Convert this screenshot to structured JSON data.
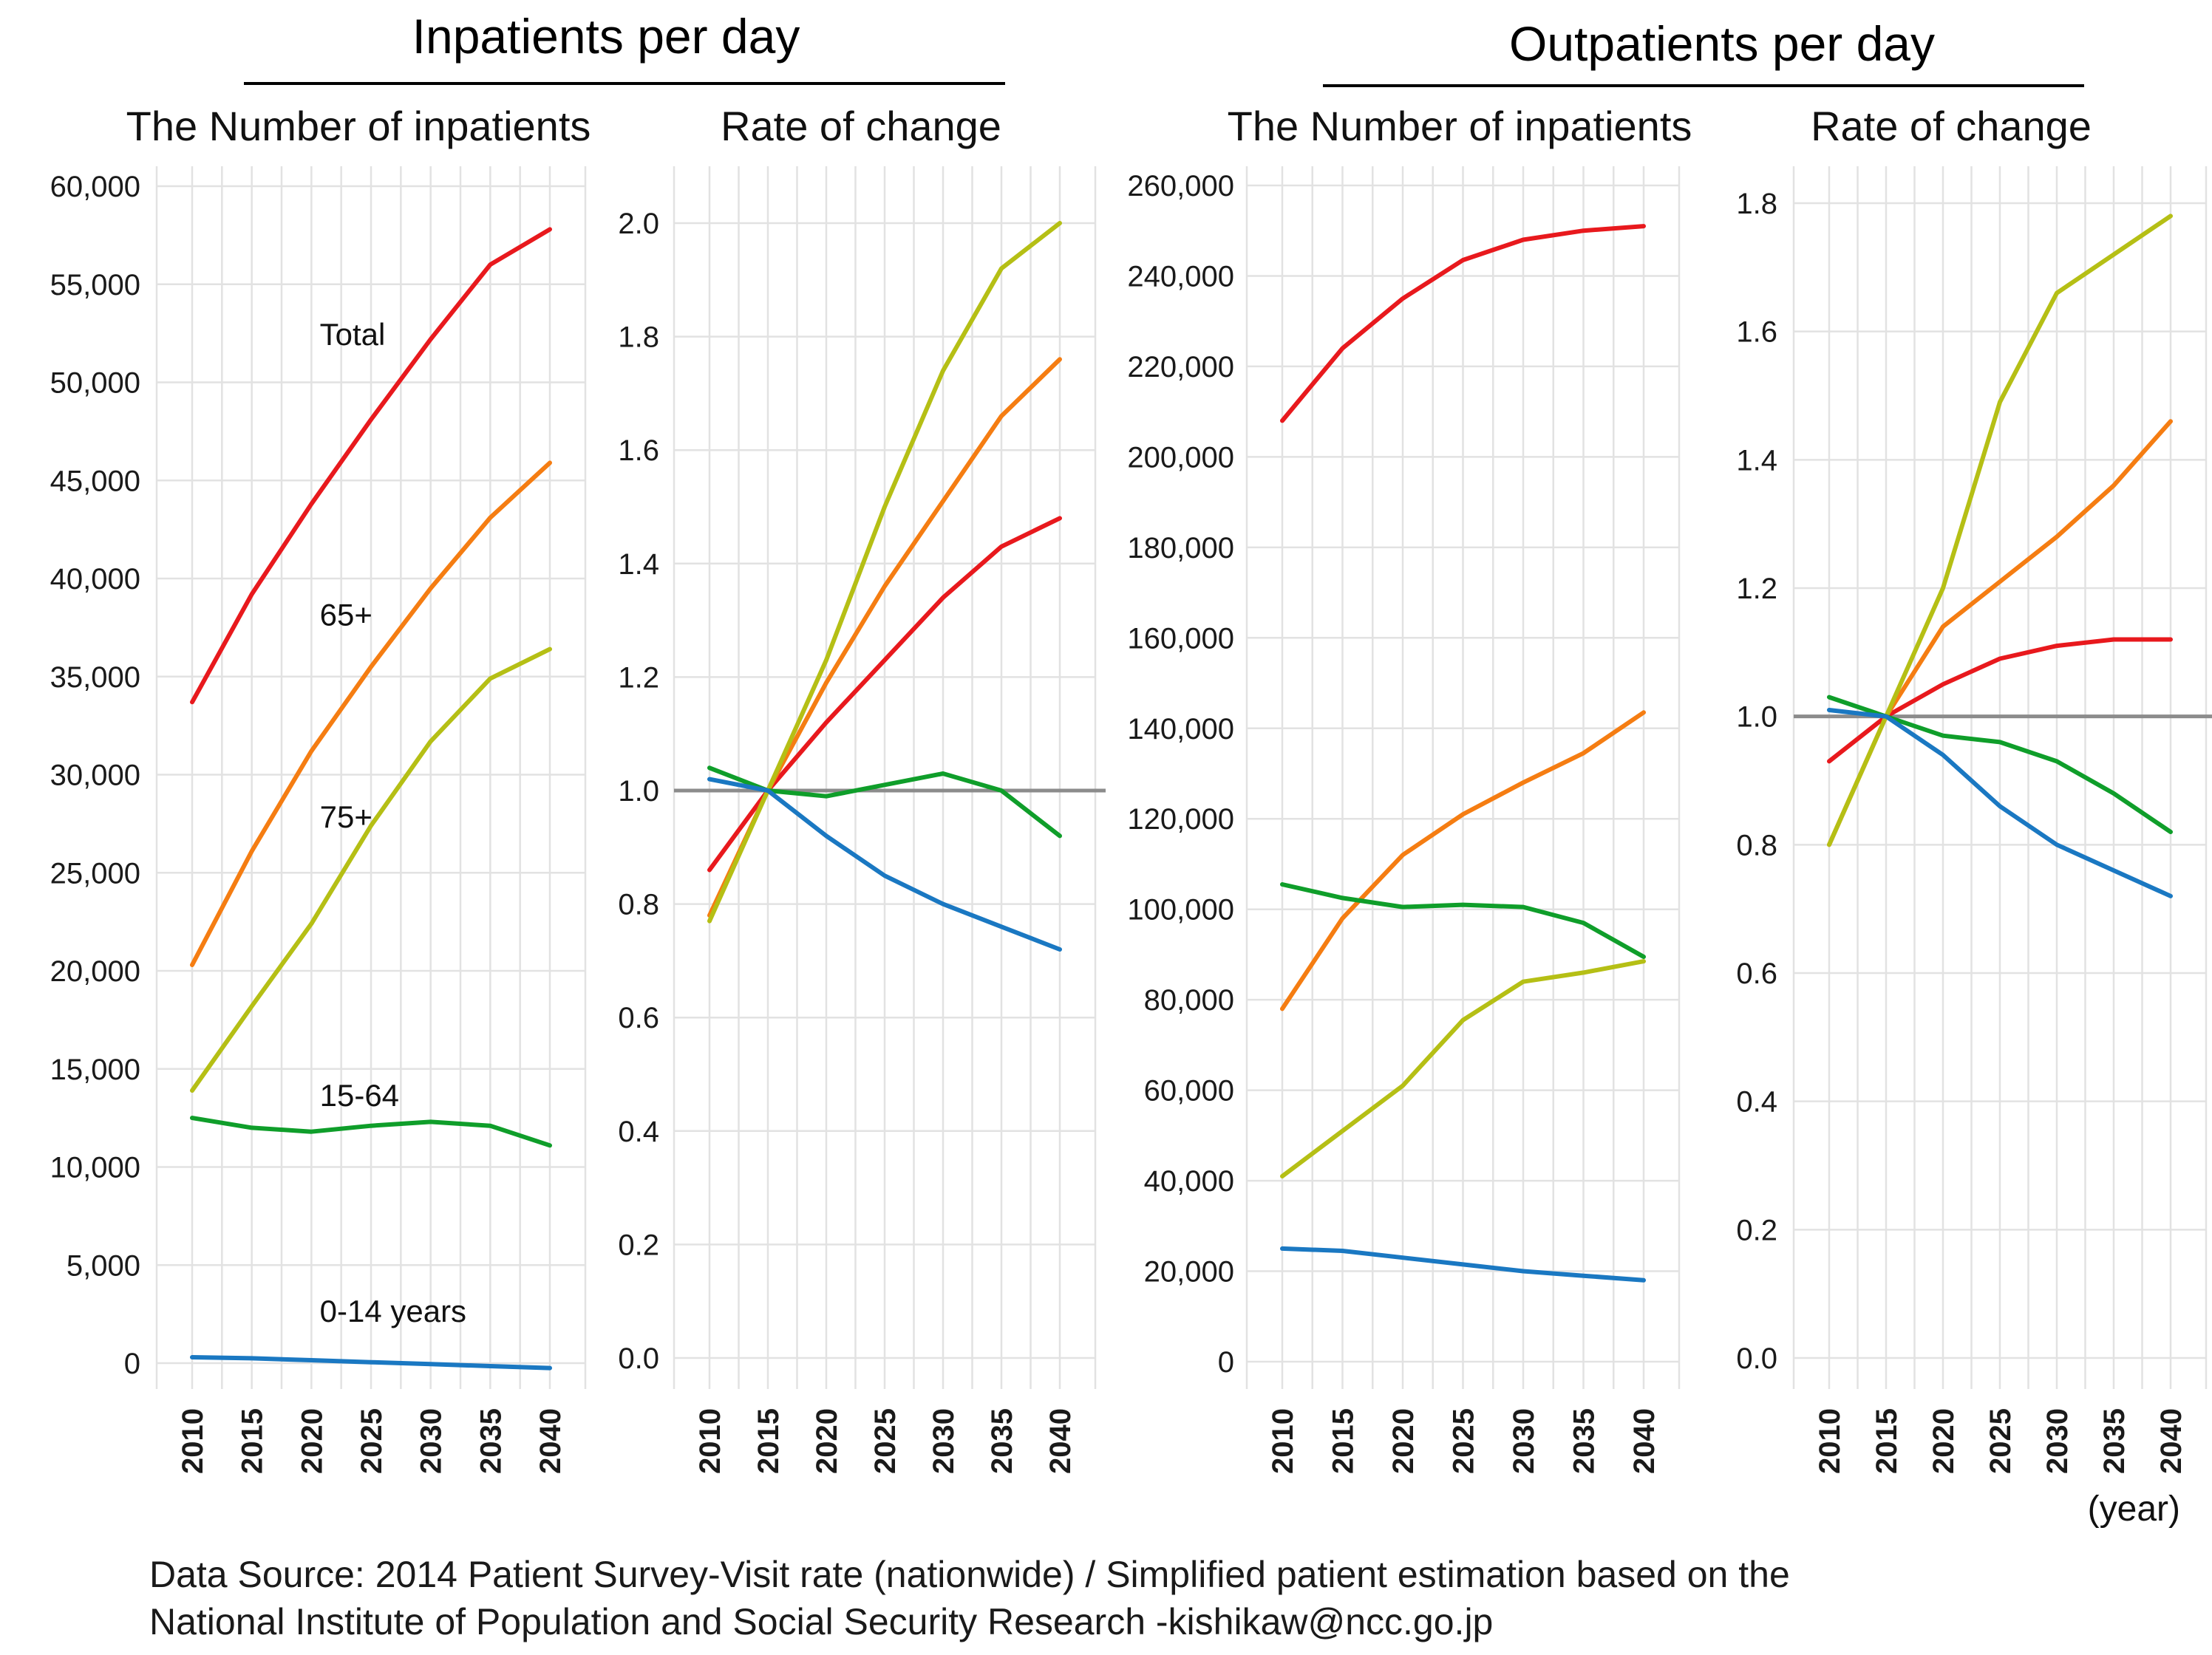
{
  "headers": {
    "inpatients_title": "Inpatients per day",
    "outpatients_title": "Outpatients per day"
  },
  "x_unit": "(year)",
  "source": {
    "line1": "Data Source: 2014 Patient Survey-Visit rate (nationwide) / Simplified patient estimation based on the",
    "line2": "National Institute of Population and Social Security Research -kishikaw@ncc.go.jp"
  },
  "colors": {
    "total": "#e8191d",
    "age65": "#f57d12",
    "age75": "#b5bf15",
    "age15_64": "#0f9e2a",
    "age0_14": "#1a78c2",
    "reference": "#8c8c8c"
  },
  "chart_data": [
    {
      "type": "line",
      "group": "Inpatients per day",
      "title": "The Number of inpatients",
      "x": [
        2010,
        2015,
        2020,
        2025,
        2030,
        2035,
        2040
      ],
      "x_tick_labels": [
        "2010",
        "2015",
        "2020",
        "2025",
        "2030",
        "2035",
        "2040"
      ],
      "ylim": [
        0,
        60000
      ],
      "y_ticks": [
        0,
        5000,
        10000,
        15000,
        20000,
        25000,
        30000,
        35000,
        40000,
        45000,
        50000,
        55000,
        60000
      ],
      "y_tick_labels": [
        "0",
        "5,000",
        "10,000",
        "15,000",
        "20,000",
        "25,000",
        "30,000",
        "35,000",
        "40,000",
        "45,000",
        "50,000",
        "55,000",
        "60,000"
      ],
      "grid": true,
      "series": [
        {
          "name": "Total",
          "color": "#e8191d",
          "values": [
            33700,
            39200,
            43800,
            48100,
            52200,
            56000,
            57800
          ]
        },
        {
          "name": "65+",
          "color": "#f57d12",
          "values": [
            20300,
            26100,
            31200,
            35500,
            39500,
            43100,
            45900
          ]
        },
        {
          "name": "75+",
          "color": "#b5bf15",
          "values": [
            13900,
            18200,
            22400,
            27400,
            31700,
            34900,
            36400
          ]
        },
        {
          "name": "15-64",
          "color": "#0f9e2a",
          "values": [
            12500,
            12000,
            11800,
            12100,
            12300,
            12100,
            11100
          ]
        },
        {
          "name": "0-14 years",
          "color": "#1a78c2",
          "values": [
            300,
            250,
            150,
            50,
            -50,
            -150,
            -250
          ]
        }
      ],
      "annotations": [
        {
          "text": "Total",
          "x": 2020.7,
          "y": 51900
        },
        {
          "text": "65+",
          "x": 2020.7,
          "y": 37600
        },
        {
          "text": "75+",
          "x": 2020.7,
          "y": 27300
        },
        {
          "text": "15-64",
          "x": 2020.7,
          "y": 13100
        },
        {
          "text": "0-14 years",
          "x": 2020.7,
          "y": 2100
        }
      ]
    },
    {
      "type": "line",
      "group": "Inpatients per day",
      "title": "Rate of change",
      "x": [
        2010,
        2015,
        2020,
        2025,
        2030,
        2035,
        2040
      ],
      "x_tick_labels": [
        "2010",
        "2015",
        "2020",
        "2025",
        "2030",
        "2035",
        "2040"
      ],
      "ylim": [
        0,
        2.0
      ],
      "y_ticks": [
        0,
        0.2,
        0.4,
        0.6,
        0.8,
        1.0,
        1.2,
        1.4,
        1.6,
        1.8,
        2.0
      ],
      "y_tick_labels": [
        "0.0",
        "0.2",
        "0.4",
        "0.6",
        "0.8",
        "1.0",
        "1.2",
        "1.4",
        "1.6",
        "1.8",
        "2.0"
      ],
      "reference_line": 1.0,
      "grid": true,
      "series": [
        {
          "name": "Total",
          "color": "#e8191d",
          "values": [
            0.86,
            1.0,
            1.12,
            1.23,
            1.34,
            1.43,
            1.48
          ]
        },
        {
          "name": "65+",
          "color": "#f57d12",
          "values": [
            0.78,
            1.0,
            1.19,
            1.36,
            1.51,
            1.66,
            1.76
          ]
        },
        {
          "name": "75+",
          "color": "#b5bf15",
          "values": [
            0.77,
            1.0,
            1.23,
            1.5,
            1.74,
            1.92,
            2.0
          ]
        },
        {
          "name": "15-64",
          "color": "#0f9e2a",
          "values": [
            1.04,
            1.0,
            0.99,
            1.01,
            1.03,
            1.0,
            0.92
          ]
        },
        {
          "name": "0-14 years",
          "color": "#1a78c2",
          "values": [
            1.02,
            1.0,
            0.92,
            0.85,
            0.8,
            0.76,
            0.72
          ]
        }
      ]
    },
    {
      "type": "line",
      "group": "Outpatients per day",
      "title": "The Number of inpatients",
      "x": [
        2010,
        2015,
        2020,
        2025,
        2030,
        2035,
        2040
      ],
      "x_tick_labels": [
        "2010",
        "2015",
        "2020",
        "2025",
        "2030",
        "2035",
        "2040"
      ],
      "ylim": [
        0,
        260000
      ],
      "y_ticks": [
        0,
        20000,
        40000,
        60000,
        80000,
        100000,
        120000,
        140000,
        160000,
        180000,
        200000,
        220000,
        240000,
        260000
      ],
      "y_tick_labels": [
        "0",
        "20,000",
        "40,000",
        "60,000",
        "80,000",
        "100,000",
        "120,000",
        "140,000",
        "160,000",
        "180,000",
        "200,000",
        "220,000",
        "240,000",
        "260,000"
      ],
      "grid": true,
      "series": [
        {
          "name": "Total",
          "color": "#e8191d",
          "values": [
            208000,
            224000,
            235000,
            243500,
            248000,
            250000,
            251000
          ]
        },
        {
          "name": "65+",
          "color": "#f57d12",
          "values": [
            78000,
            98000,
            112000,
            121000,
            128000,
            134500,
            143500
          ]
        },
        {
          "name": "75+",
          "color": "#b5bf15",
          "values": [
            41000,
            51000,
            61000,
            75500,
            84000,
            86000,
            88500
          ]
        },
        {
          "name": "15-64",
          "color": "#0f9e2a",
          "values": [
            105500,
            102500,
            100500,
            101000,
            100500,
            97000,
            89500
          ]
        },
        {
          "name": "0-14 years",
          "color": "#1a78c2",
          "values": [
            25000,
            24500,
            23000,
            21500,
            20000,
            19000,
            18000
          ]
        }
      ]
    },
    {
      "type": "line",
      "group": "Outpatients per day",
      "title": "Rate of change",
      "x": [
        2010,
        2015,
        2020,
        2025,
        2030,
        2035,
        2040
      ],
      "x_tick_labels": [
        "2010",
        "2015",
        "2020",
        "2025",
        "2030",
        "2035",
        "2040"
      ],
      "ylim": [
        0,
        1.8
      ],
      "y_ticks": [
        0,
        0.2,
        0.4,
        0.6,
        0.8,
        1.0,
        1.2,
        1.4,
        1.6,
        1.8
      ],
      "y_tick_labels": [
        "0.0",
        "0.2",
        "0.4",
        "0.6",
        "0.8",
        "1.0",
        "1.2",
        "1.4",
        "1.6",
        "1.8"
      ],
      "reference_line": 1.0,
      "grid": true,
      "series": [
        {
          "name": "Total",
          "color": "#e8191d",
          "values": [
            0.93,
            1.0,
            1.05,
            1.09,
            1.11,
            1.12,
            1.12
          ]
        },
        {
          "name": "65+",
          "color": "#f57d12",
          "values": [
            0.8,
            1.0,
            1.14,
            1.21,
            1.28,
            1.36,
            1.46
          ]
        },
        {
          "name": "75+",
          "color": "#b5bf15",
          "values": [
            0.8,
            1.0,
            1.2,
            1.49,
            1.66,
            1.72,
            1.78
          ]
        },
        {
          "name": "15-64",
          "color": "#0f9e2a",
          "values": [
            1.03,
            1.0,
            0.97,
            0.96,
            0.93,
            0.88,
            0.82
          ]
        },
        {
          "name": "0-14 years",
          "color": "#1a78c2",
          "values": [
            1.01,
            1.0,
            0.94,
            0.86,
            0.8,
            0.76,
            0.72
          ]
        }
      ]
    }
  ]
}
